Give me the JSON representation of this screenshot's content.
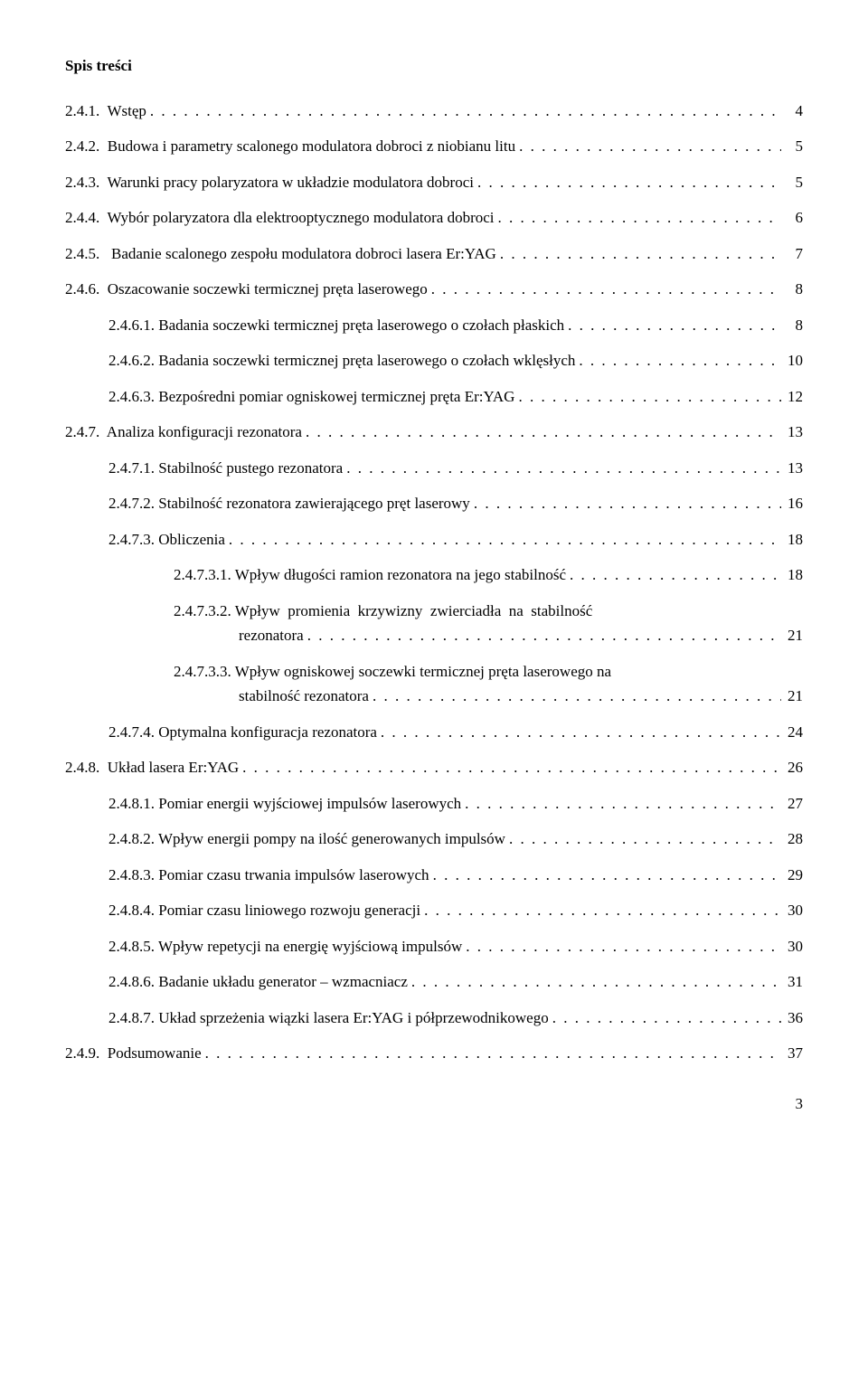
{
  "heading": "Spis treści",
  "entries": [
    {
      "indent": 0,
      "label": "2.4.1.  Wstęp",
      "page": "4"
    },
    {
      "indent": 0,
      "label": "2.4.2.  Budowa i parametry scalonego modulatora dobroci z niobianu litu",
      "page": "5"
    },
    {
      "indent": 0,
      "label": "2.4.3.  Warunki pracy polaryzatora w układzie modulatora dobroci",
      "page": "5"
    },
    {
      "indent": 0,
      "label": "2.4.4.  Wybór polaryzatora dla elektrooptycznego modulatora dobroci",
      "page": "6"
    },
    {
      "indent": 0,
      "label": "2.4.5.   Badanie scalonego zespołu modulatora dobroci lasera Er:YAG",
      "page": "7"
    },
    {
      "indent": 0,
      "label": "2.4.6.  Oszacowanie soczewki termicznej pręta laserowego",
      "page": "8"
    },
    {
      "indent": 1,
      "label": "2.4.6.1. Badania soczewki termicznej pręta laserowego o czołach płaskich",
      "page": "8"
    },
    {
      "indent": 1,
      "label": "2.4.6.2. Badania soczewki termicznej pręta laserowego o czołach wklęsłych",
      "page": "10"
    },
    {
      "indent": 1,
      "label": "2.4.6.3. Bezpośredni pomiar ogniskowej termicznej pręta Er:YAG",
      "page": "12"
    },
    {
      "indent": 0,
      "label": "2.4.7.  Analiza konfiguracji rezonatora",
      "page": "13"
    },
    {
      "indent": 1,
      "label": "2.4.7.1. Stabilność pustego rezonatora",
      "page": "13"
    },
    {
      "indent": 1,
      "label": "2.4.7.2. Stabilność rezonatora zawierającego pręt laserowy",
      "page": "16"
    },
    {
      "indent": 1,
      "label": "2.4.7.3. Obliczenia",
      "page": "18"
    },
    {
      "indent": 2,
      "label": "2.4.7.3.1. Wpływ długości ramion rezonatora na jego stabilność",
      "page": "18"
    },
    {
      "indent": 2,
      "wrap": true,
      "label1": "2.4.7.3.2. Wpływ  promienia  krzywizny  zwierciadła  na  stabilność",
      "label2": "rezonatora",
      "page": "21"
    },
    {
      "indent": 2,
      "wrap": true,
      "label1": "2.4.7.3.3. Wpływ ogniskowej soczewki termicznej pręta laserowego na",
      "label2": "stabilność rezonatora",
      "page": "21"
    },
    {
      "indent": 1,
      "label": "2.4.7.4. Optymalna konfiguracja rezonatora",
      "page": "24"
    },
    {
      "indent": 0,
      "label": "2.4.8.  Układ lasera Er:YAG",
      "page": "26"
    },
    {
      "indent": 1,
      "label": "2.4.8.1. Pomiar energii wyjściowej impulsów laserowych",
      "page": "27"
    },
    {
      "indent": 1,
      "label": "2.4.8.2. Wpływ energii pompy na ilość generowanych impulsów",
      "page": "28"
    },
    {
      "indent": 1,
      "label": "2.4.8.3. Pomiar czasu trwania impulsów laserowych",
      "page": "29"
    },
    {
      "indent": 1,
      "label": "2.4.8.4. Pomiar czasu liniowego rozwoju generacji",
      "page": "30"
    },
    {
      "indent": 1,
      "label": "2.4.8.5. Wpływ repetycji na energię wyjściową impulsów",
      "page": "30"
    },
    {
      "indent": 1,
      "label": "2.4.8.6. Badanie układu generator – wzmacniacz",
      "page": "31"
    },
    {
      "indent": 1,
      "label": "2.4.8.7. Układ sprzeżenia wiązki lasera Er:YAG i półprzewodnikowego",
      "page": "36"
    },
    {
      "indent": 0,
      "label": "2.4.9.  Podsumowanie",
      "page": "37"
    }
  ],
  "footerPage": "3",
  "dotsFill": ". . . . . . . . . . . . . . . . . . . . . . . . . . . . . . . . . . . . . . . . . . . . . . . . . . . . . . . . . . . . . . . . . . . . . . . . . . . . . . . . . . . . . . . . . . . . . . . . . . . ."
}
